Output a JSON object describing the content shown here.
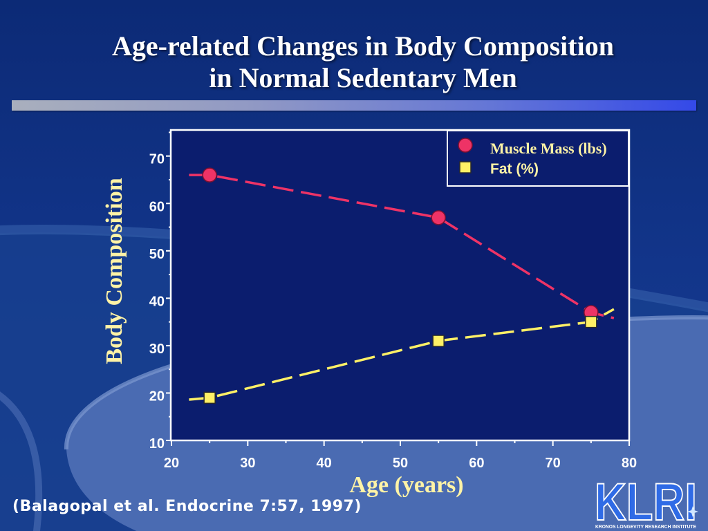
{
  "slide": {
    "title_line1": "Age-related Changes in Body Composition",
    "title_line2": "in Normal Sedentary Men",
    "citation": "(Balagopal et al. Endocrine 7:57, 1997)",
    "logo": {
      "text": "KLRI",
      "subtitle": "KRONOS LONGEVITY RESEARCH INSTITUTE"
    }
  },
  "chart_data": {
    "type": "line",
    "xlabel": "Age (years)",
    "ylabel": "Body Composition",
    "xlim": [
      20,
      80
    ],
    "ylim": [
      10,
      75.5
    ],
    "xticks": [
      20,
      30,
      40,
      50,
      60,
      70,
      80
    ],
    "yticks": [
      10,
      20,
      30,
      40,
      50,
      60,
      70
    ],
    "grid": false,
    "legend_position": "top-right",
    "series": [
      {
        "name": "Muscle Mass (lbs)",
        "marker": "circle",
        "line_style": "dashed",
        "color": "#EE3366",
        "x": [
          25,
          55,
          75
        ],
        "y": [
          66,
          57,
          37
        ],
        "trend_line": {
          "x": [
            22.3,
            25,
            55,
            75,
            78
          ],
          "y": [
            66,
            66,
            57,
            37,
            35.8
          ]
        }
      },
      {
        "name": "Fat (%)",
        "marker": "square",
        "line_style": "dashed",
        "color": "#FFF066",
        "x": [
          25,
          55,
          75
        ],
        "y": [
          19,
          31,
          35
        ],
        "trend_line": {
          "x": [
            22.3,
            25,
            55,
            75,
            78
          ],
          "y": [
            18.6,
            19,
            31,
            35,
            37.7
          ]
        }
      }
    ]
  }
}
